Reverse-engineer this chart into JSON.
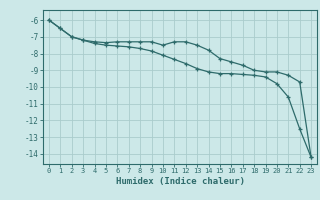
{
  "xlabel": "Humidex (Indice chaleur)",
  "ylabel": "",
  "background_color": "#cce8e8",
  "grid_color": "#aacccc",
  "line_color": "#2e6b6b",
  "xlim": [
    -0.5,
    23.5
  ],
  "ylim": [
    -14.6,
    -5.4
  ],
  "yticks": [
    -6,
    -7,
    -8,
    -9,
    -10,
    -11,
    -12,
    -13,
    -14
  ],
  "xticks": [
    0,
    1,
    2,
    3,
    4,
    5,
    6,
    7,
    8,
    9,
    10,
    11,
    12,
    13,
    14,
    15,
    16,
    17,
    18,
    19,
    20,
    21,
    22,
    23
  ],
  "series1_x": [
    0,
    1,
    2,
    3,
    4,
    5,
    6,
    7,
    8,
    9,
    10,
    11,
    12,
    13,
    14,
    15,
    16,
    17,
    18,
    19,
    20,
    21,
    22,
    23
  ],
  "series1_y": [
    -6.0,
    -6.5,
    -7.0,
    -7.2,
    -7.3,
    -7.35,
    -7.3,
    -7.3,
    -7.3,
    -7.3,
    -7.5,
    -7.3,
    -7.3,
    -7.5,
    -7.8,
    -8.3,
    -8.5,
    -8.7,
    -9.0,
    -9.1,
    -9.1,
    -9.3,
    -9.7,
    -14.2
  ],
  "series2_x": [
    0,
    1,
    2,
    3,
    4,
    5,
    6,
    7,
    8,
    9,
    10,
    11,
    12,
    13,
    14,
    15,
    16,
    17,
    18,
    19,
    20,
    21,
    22,
    23
  ],
  "series2_y": [
    -6.0,
    -6.5,
    -7.0,
    -7.2,
    -7.4,
    -7.5,
    -7.55,
    -7.6,
    -7.7,
    -7.85,
    -8.1,
    -8.35,
    -8.6,
    -8.9,
    -9.1,
    -9.2,
    -9.2,
    -9.25,
    -9.3,
    -9.4,
    -9.8,
    -10.6,
    -12.5,
    -14.2
  ]
}
